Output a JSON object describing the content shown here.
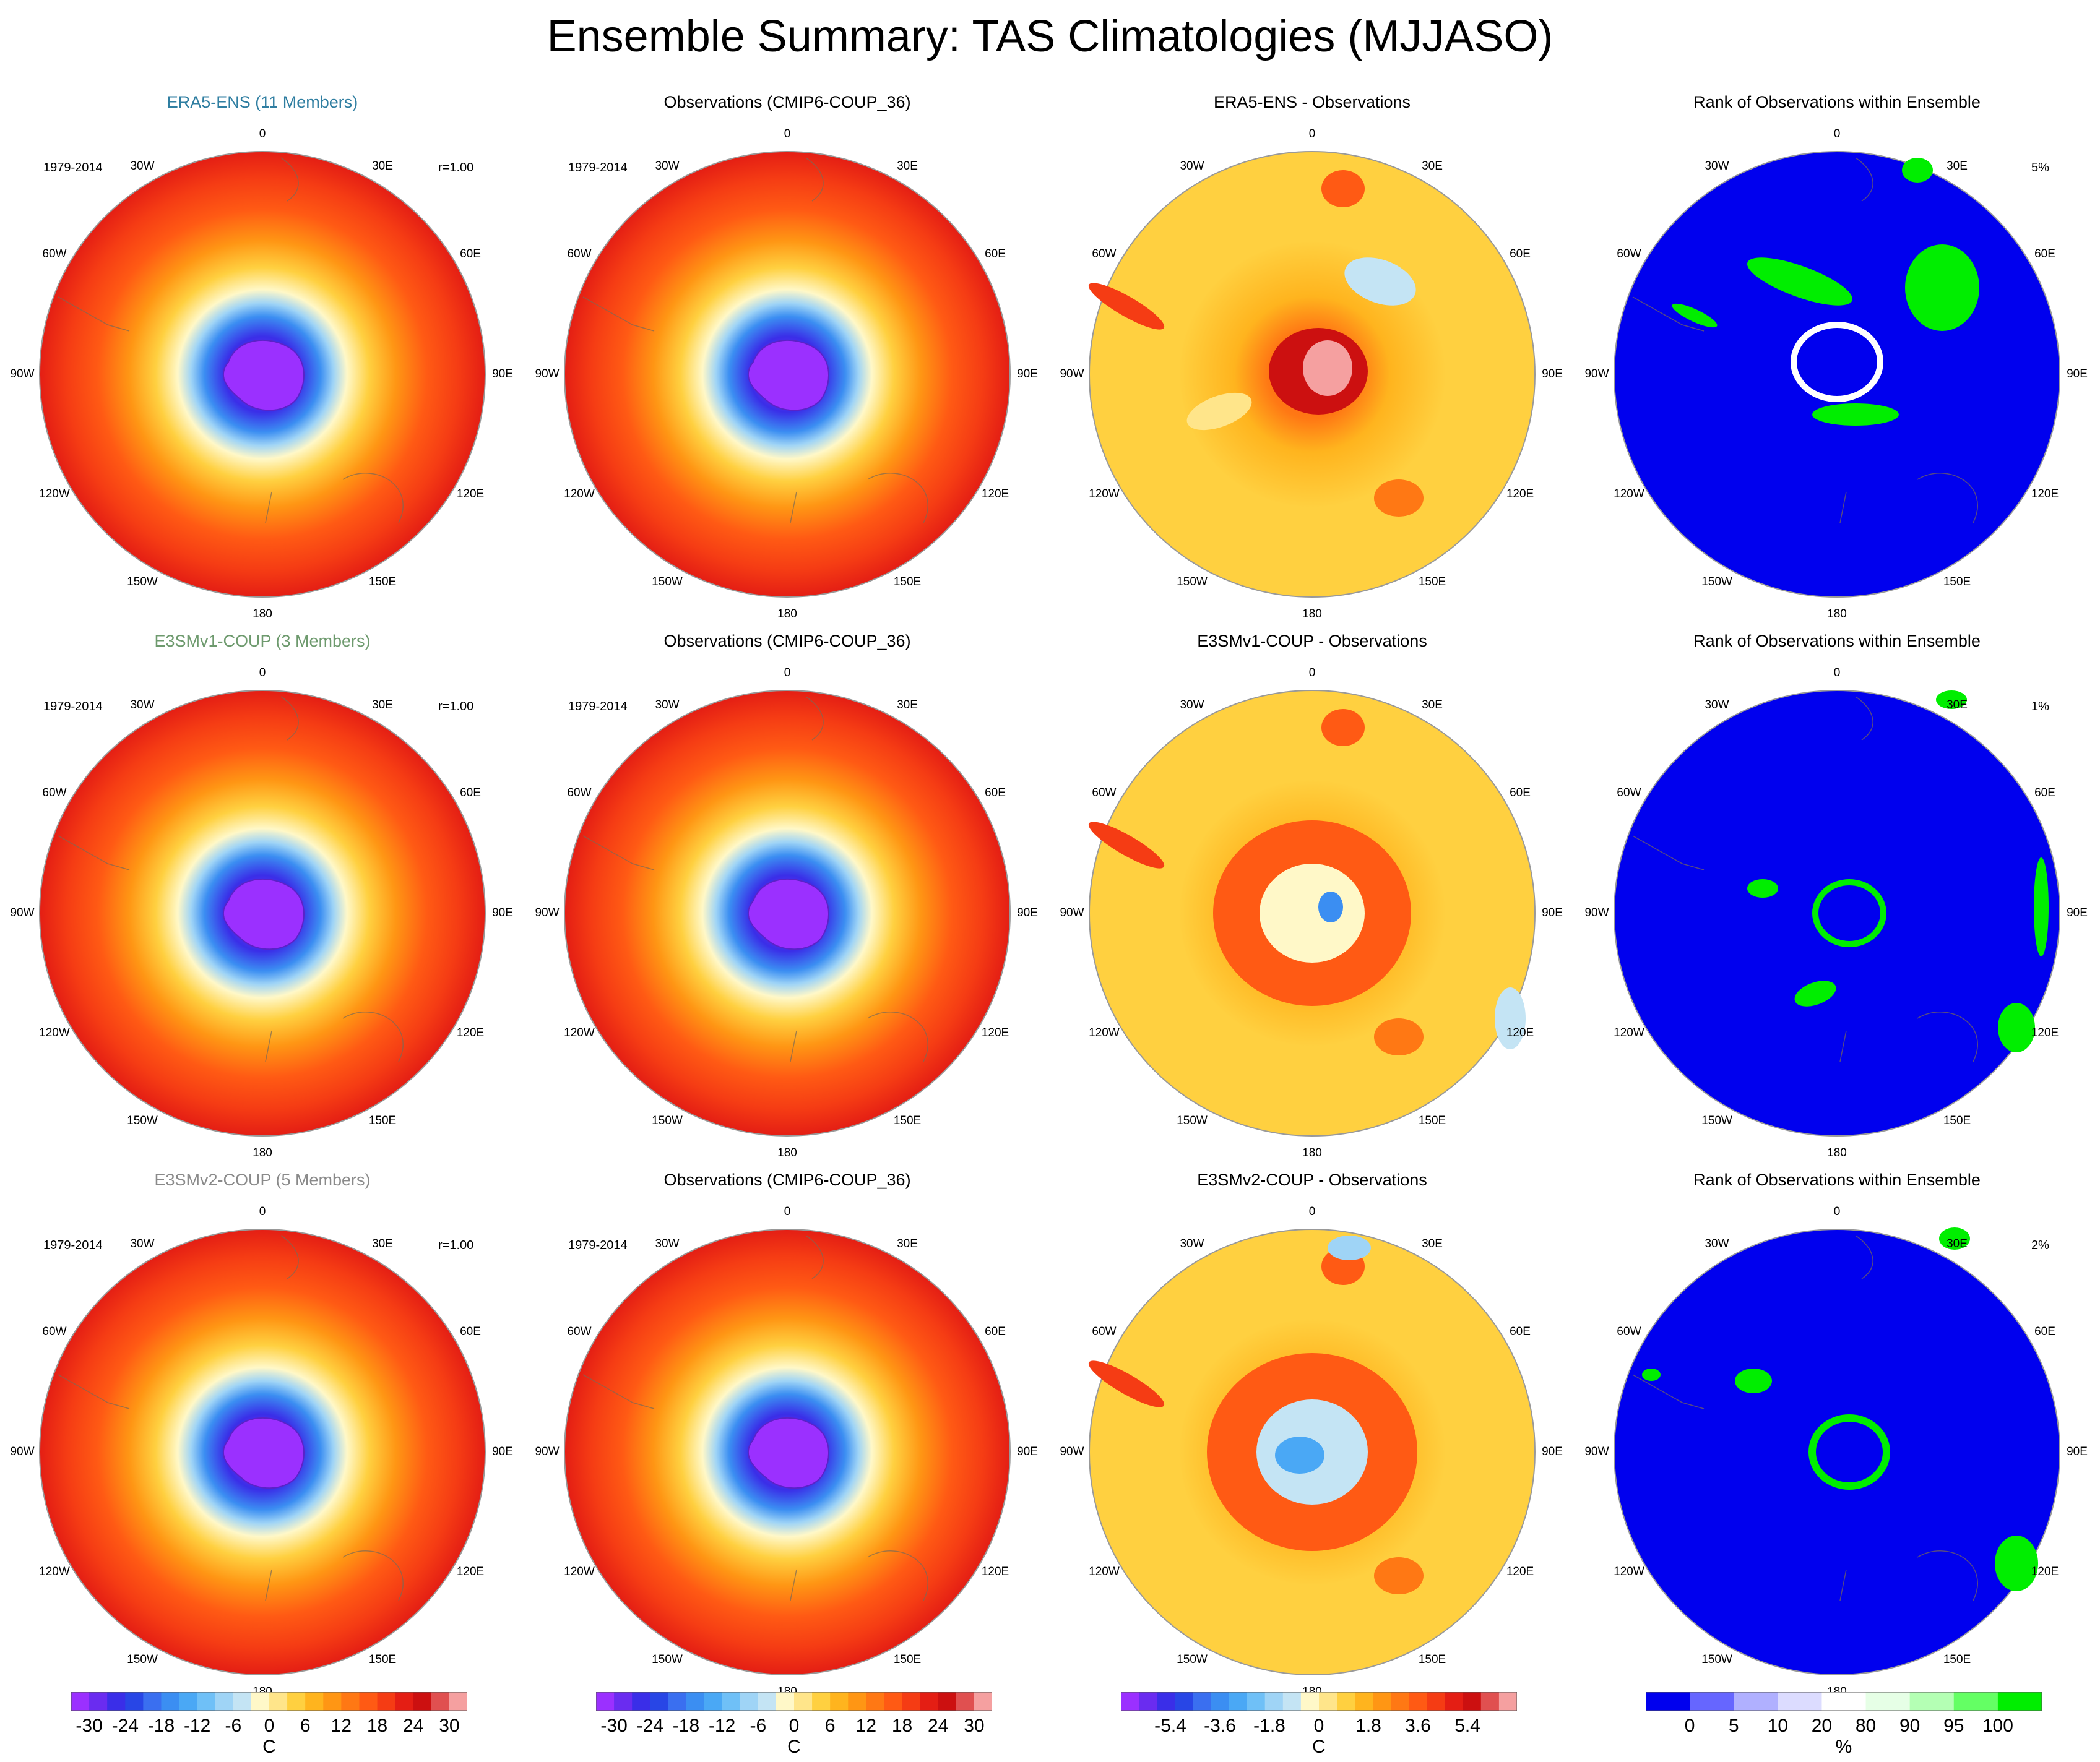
{
  "title": "Ensemble Summary: TAS Climatologies (MJJASO)",
  "lon_labels": [
    "0",
    "30E",
    "60E",
    "90E",
    "120E",
    "150E",
    "180",
    "150W",
    "120W",
    "90W",
    "60W",
    "30W"
  ],
  "colors": {
    "members_row1": "#2f7ea1",
    "members_row2": "#6e9a6e",
    "members_row3": "#8a8a8a",
    "rank_blue": "#0000ee",
    "rank_green": "#00ff00"
  },
  "rows": [
    {
      "panels": [
        {
          "kind": "clim",
          "title": "ERA5-ENS (11 Members)",
          "title_color": "members_row1",
          "period": "1979-2014",
          "corr": "r=1.00"
        },
        {
          "kind": "clim",
          "title": "Observations (CMIP6-COUP_36)",
          "period": "1979-2014"
        },
        {
          "kind": "diff",
          "title": "ERA5-ENS - Observations",
          "variant": 1
        },
        {
          "kind": "rank",
          "title": "Rank of Observations within Ensemble",
          "pct": "5%",
          "variant": 1
        }
      ]
    },
    {
      "panels": [
        {
          "kind": "clim",
          "title": "E3SMv1-COUP (3 Members)",
          "title_color": "members_row2",
          "period": "1979-2014",
          "corr": "r=1.00"
        },
        {
          "kind": "clim",
          "title": "Observations (CMIP6-COUP_36)",
          "period": "1979-2014"
        },
        {
          "kind": "diff",
          "title": "E3SMv1-COUP - Observations",
          "variant": 2
        },
        {
          "kind": "rank",
          "title": "Rank of Observations within Ensemble",
          "pct": "1%",
          "variant": 2
        }
      ]
    },
    {
      "panels": [
        {
          "kind": "clim",
          "title": "E3SMv2-COUP (5 Members)",
          "title_color": "members_row3",
          "period": "1979-2014",
          "corr": "r=1.00"
        },
        {
          "kind": "clim",
          "title": "Observations (CMIP6-COUP_36)",
          "period": "1979-2014"
        },
        {
          "kind": "diff",
          "title": "E3SMv2-COUP - Observations",
          "variant": 3
        },
        {
          "kind": "rank",
          "title": "Rank of Observations within Ensemble",
          "pct": "2%",
          "variant": 3
        }
      ]
    }
  ],
  "colorbars": [
    {
      "type": "temperature",
      "colors": [
        "#9b30ff",
        "#6a2cf0",
        "#3a2ee8",
        "#2846e6",
        "#3a6ff0",
        "#3b8ef2",
        "#4aa8f5",
        "#6fc0f7",
        "#9fd4f6",
        "#c4e4f4",
        "#fff8c8",
        "#ffe58a",
        "#ffd040",
        "#ffb41e",
        "#ff9614",
        "#ff7814",
        "#ff5a14",
        "#f53c14",
        "#e41e14",
        "#cc1010",
        "#e05050",
        "#f5a0a0"
      ],
      "ticks": [
        "-30",
        "-24",
        "-18",
        "-12",
        "-6",
        "0",
        "6",
        "12",
        "18",
        "24",
        "30"
      ],
      "unit": "C"
    },
    {
      "type": "temperature",
      "colors": [
        "#9b30ff",
        "#6a2cf0",
        "#3a2ee8",
        "#2846e6",
        "#3a6ff0",
        "#3b8ef2",
        "#4aa8f5",
        "#6fc0f7",
        "#9fd4f6",
        "#c4e4f4",
        "#fff8c8",
        "#ffe58a",
        "#ffd040",
        "#ffb41e",
        "#ff9614",
        "#ff7814",
        "#ff5a14",
        "#f53c14",
        "#e41e14",
        "#cc1010",
        "#e05050",
        "#f5a0a0"
      ],
      "ticks": [
        "-30",
        "-24",
        "-18",
        "-12",
        "-6",
        "0",
        "6",
        "12",
        "18",
        "24",
        "30"
      ],
      "unit": "C"
    },
    {
      "type": "difference",
      "colors": [
        "#9b30ff",
        "#6a2cf0",
        "#3a2ee8",
        "#2846e6",
        "#3a6ff0",
        "#3b8ef2",
        "#4aa8f5",
        "#6fc0f7",
        "#9fd4f6",
        "#c4e4f4",
        "#fff8c8",
        "#ffe58a",
        "#ffd040",
        "#ffb41e",
        "#ff9614",
        "#ff7814",
        "#ff5a14",
        "#f53c14",
        "#e41e14",
        "#cc1010",
        "#e05050",
        "#f5a0a0"
      ],
      "ticks": [
        "-5.4",
        "-3.6",
        "-1.8",
        "0",
        "1.8",
        "3.6",
        "5.4"
      ],
      "unit": "C"
    },
    {
      "type": "rank",
      "colors": [
        "#0000ee",
        "#6666ff",
        "#b0b0ff",
        "#dcdcff",
        "#ffffff",
        "#e6ffe6",
        "#b4ffb4",
        "#64ff64",
        "#00ee00"
      ],
      "ticks": [
        "0",
        "5",
        "10",
        "20",
        "80",
        "90",
        "95",
        "100"
      ],
      "unit": "%"
    }
  ]
}
